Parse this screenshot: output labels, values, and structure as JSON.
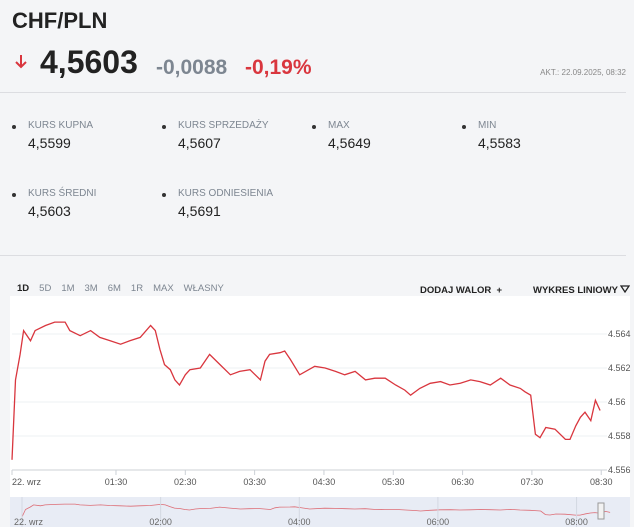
{
  "header": {
    "title": "CHF/PLN",
    "price": "4,5603",
    "change": "-0,0088",
    "change_pct": "-0,19%",
    "updated": "AKT.: 22.09.2025, 08:32"
  },
  "stats": [
    {
      "label": "KURS KUPNA",
      "value": "4,5599"
    },
    {
      "label": "KURS SPRZEDAŻY",
      "value": "4,5607"
    },
    {
      "label": "MAX",
      "value": "4,5649"
    },
    {
      "label": "MIN",
      "value": "4,5583"
    },
    {
      "label": "KURS ŚREDNI",
      "value": "4,5603"
    },
    {
      "label": "KURS ODNIESIENIA",
      "value": "4,5691"
    }
  ],
  "tabs": [
    "1D",
    "5D",
    "1M",
    "3M",
    "6M",
    "1R",
    "MAX",
    "WŁASNY"
  ],
  "actions": {
    "add": "DODAJ WALOR",
    "chart_type": "WYKRES LINIOWY"
  },
  "chart_data": {
    "type": "line",
    "color": "#d9363e",
    "x": [
      0,
      3,
      7,
      10,
      16,
      20,
      29,
      37,
      46,
      50,
      59,
      68,
      76,
      85,
      94,
      102,
      111,
      120,
      124,
      128,
      132,
      137,
      141,
      145,
      150,
      154,
      163,
      171,
      180,
      189,
      197,
      206,
      215,
      219,
      223,
      232,
      236,
      241,
      249,
      262,
      271,
      280,
      288,
      297,
      306,
      314,
      323,
      332,
      340,
      345,
      353,
      362,
      371,
      379,
      388,
      397,
      405,
      414,
      423,
      431,
      440,
      444,
      449,
      453,
      457,
      462,
      470,
      479,
      483,
      488,
      492,
      496,
      501,
      505,
      509
    ],
    "values": [
      4.5566,
      4.5613,
      4.5628,
      4.5642,
      4.5636,
      4.5642,
      4.5645,
      4.5647,
      4.5647,
      4.5642,
      4.5639,
      4.5642,
      4.5638,
      4.5636,
      4.5634,
      4.5636,
      4.5638,
      4.5645,
      4.5642,
      4.5631,
      4.5622,
      4.5619,
      4.5613,
      4.561,
      4.5616,
      4.5619,
      4.562,
      4.5628,
      4.5622,
      4.5616,
      4.5618,
      4.5619,
      4.5613,
      4.5624,
      4.5628,
      4.5629,
      4.563,
      4.5625,
      4.5616,
      4.5621,
      4.562,
      4.5618,
      4.5616,
      4.5618,
      4.5613,
      4.5614,
      4.5614,
      4.561,
      4.5607,
      4.5604,
      4.5608,
      4.5611,
      4.5612,
      4.561,
      4.5611,
      4.5613,
      4.5612,
      4.561,
      4.5614,
      4.561,
      4.5608,
      4.5606,
      4.5604,
      4.5581,
      4.5579,
      4.5585,
      4.5584,
      4.5578,
      4.5578,
      4.5586,
      4.5591,
      4.5594,
      4.5589,
      4.5601,
      4.5595
    ],
    "xlim": [
      0,
      515
    ],
    "ylim": [
      4.556,
      4.566
    ],
    "xticks": [
      {
        "value": 0,
        "label": "22. wrz"
      },
      {
        "value": 90,
        "label": "01:30"
      },
      {
        "value": 150,
        "label": "02:30"
      },
      {
        "value": 210,
        "label": "03:30"
      },
      {
        "value": 270,
        "label": "04:30"
      },
      {
        "value": 330,
        "label": "05:30"
      },
      {
        "value": 390,
        "label": "06:30"
      },
      {
        "value": 450,
        "label": "07:30"
      },
      {
        "value": 510,
        "label": "08:30"
      }
    ],
    "yticks": [
      4.556,
      4.558,
      4.56,
      4.562,
      4.564
    ],
    "navigator_xticks": [
      {
        "value": 0,
        "label": "22. wrz"
      },
      {
        "value": 120,
        "label": "02:00"
      },
      {
        "value": 240,
        "label": "04:00"
      },
      {
        "value": 360,
        "label": "06:00"
      },
      {
        "value": 480,
        "label": "08:00"
      }
    ],
    "grid": true
  }
}
